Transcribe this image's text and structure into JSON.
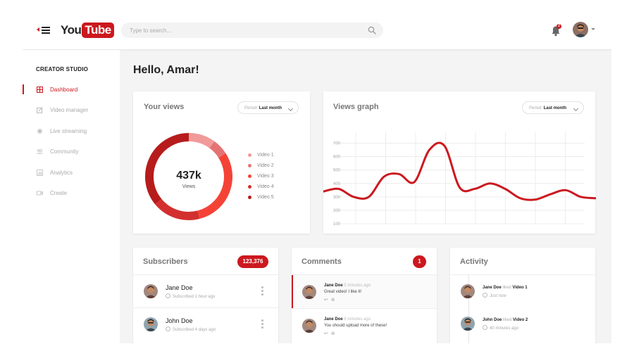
{
  "header": {
    "logo_you": "You",
    "logo_tube": "Tube",
    "search_placeholder": "Type to search...",
    "notification_count": "2"
  },
  "sidebar": {
    "title": "CREATOR STUDIO",
    "items": [
      {
        "label": "Dashboard",
        "icon": "dashboard-icon",
        "active": true
      },
      {
        "label": "Video manager",
        "icon": "edit-icon",
        "active": false
      },
      {
        "label": "Live streaming",
        "icon": "live-icon",
        "active": false
      },
      {
        "label": "Community",
        "icon": "people-icon",
        "active": false
      },
      {
        "label": "Analytics",
        "icon": "bar-chart-icon",
        "active": false
      },
      {
        "label": "Create",
        "icon": "video-camera-icon",
        "active": false
      }
    ]
  },
  "greeting": "Hello, Amar!",
  "views_card": {
    "title": "Your views",
    "period_label": "Period:",
    "period_value": "Last month",
    "total": "437k",
    "total_label": "Views",
    "legend": [
      "Video 1",
      "Video 2",
      "Video 3",
      "Video 4",
      "Video 5"
    ]
  },
  "graph_card": {
    "title": "Views graph",
    "period_label": "Period:",
    "period_value": "Last month"
  },
  "subscribers_card": {
    "title": "Subscribers",
    "count": "123,376",
    "items": [
      {
        "name": "Jane Doe",
        "meta": "Subscribed 1 hour ago"
      },
      {
        "name": "John Doe",
        "meta": "Subscribed 4 days ago"
      }
    ]
  },
  "comments_card": {
    "title": "Comments",
    "count": "1",
    "items": [
      {
        "name": "Jane Doe",
        "time": "5 minutes ago",
        "text": "Great video! I like it!"
      },
      {
        "name": "Jane Doe",
        "time": "6 minutes ago",
        "text": "You should upload more of these!"
      }
    ]
  },
  "activity_card": {
    "title": "Activity",
    "items": [
      {
        "name": "Jane Doe",
        "verb": "liked",
        "target": "Video 1",
        "time": "Just now"
      },
      {
        "name": "John Doe",
        "verb": "liked",
        "target": "Video 2",
        "time": "40 minutes ago"
      }
    ]
  },
  "colors": {
    "accent": "#cc181e",
    "donut_segments": [
      "#f19a9a",
      "#e57373",
      "#f44336",
      "#d32f2f",
      "#b71c1c"
    ]
  },
  "chart_data": [
    {
      "type": "pie",
      "labels": [
        "Video 1",
        "Video 2",
        "Video 3",
        "Video 4",
        "Video 5"
      ],
      "values": [
        10,
        6,
        30,
        18,
        36
      ],
      "center_value": "437k",
      "center_label": "Views"
    },
    {
      "type": "line",
      "x": [
        0,
        1,
        2,
        3,
        4,
        5,
        6,
        7,
        8,
        9,
        10,
        11,
        12,
        13,
        14,
        15,
        16,
        17,
        18
      ],
      "values": [
        340,
        360,
        300,
        300,
        450,
        470,
        410,
        650,
        680,
        370,
        360,
        400,
        360,
        290,
        280,
        320,
        350,
        300,
        290
      ],
      "y_ticks": [
        100,
        200,
        300,
        400,
        500,
        600,
        700
      ],
      "ylim": [
        100,
        750
      ],
      "grid": true
    }
  ]
}
